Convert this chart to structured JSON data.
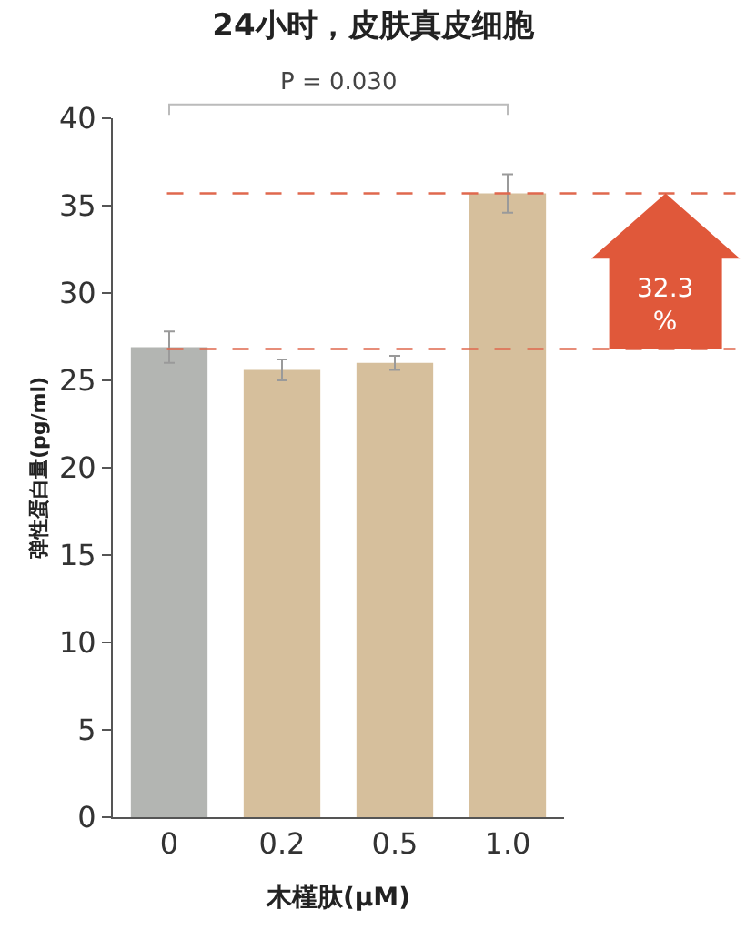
{
  "chart_data": {
    "type": "bar",
    "title": "24小时，皮肤真皮细胞",
    "xlabel": "木槿肽(μM)",
    "ylabel": "弹性蛋白量(pg/ml)",
    "categories": [
      "0",
      "0.2",
      "0.5",
      "1.0"
    ],
    "values": [
      26.9,
      25.6,
      26.0,
      35.7
    ],
    "colors": [
      "#b3b5b2",
      "#d6bf9c",
      "#d6bf9c",
      "#d6bf9c"
    ],
    "errors": [
      0.9,
      0.6,
      0.4,
      1.1
    ],
    "ylim": [
      0,
      40
    ],
    "yticks": [
      0,
      5,
      10,
      15,
      20,
      25,
      30,
      35,
      40
    ],
    "ref_lines": [
      {
        "axis": "y",
        "value": 26.8,
        "color": "#e0684e",
        "line_style": "dashed"
      },
      {
        "axis": "y",
        "value": 35.7,
        "color": "#e0684e",
        "line_style": "dashed"
      }
    ],
    "annotations": [
      "P = 0.030",
      "32.3\n%"
    ]
  }
}
